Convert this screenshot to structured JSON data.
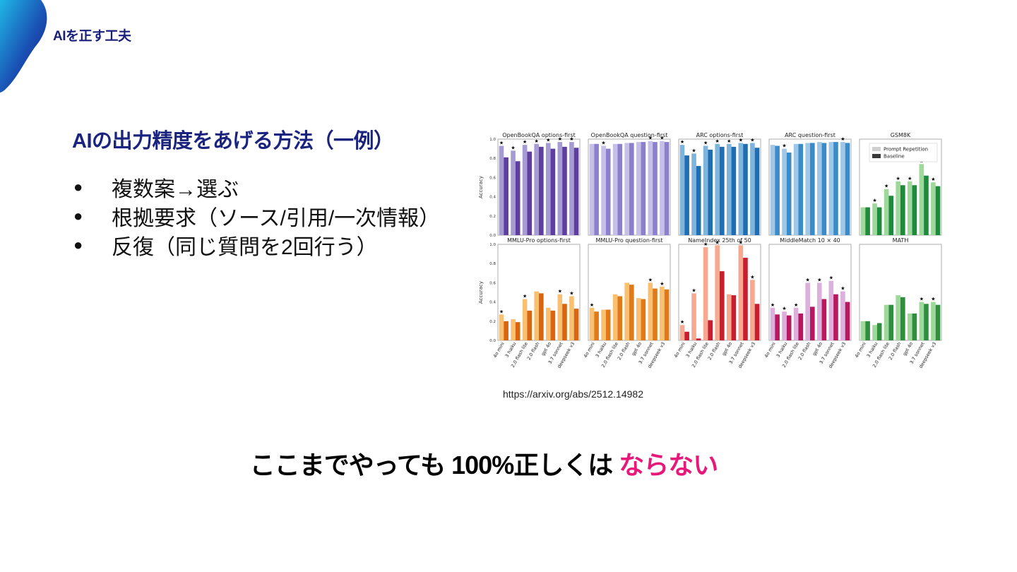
{
  "header": {
    "title": "AIを正す工夫"
  },
  "main": {
    "subtitle": "AIの出力精度をあげる方法（一例）",
    "bullets": [
      "複数案→選ぶ",
      "根拠要求（ソース/引用/一次情報）",
      "反復（同じ質問を2回行う）"
    ],
    "source_url": "https://arxiv.org/abs/2512.14982",
    "conclusion_prefix": "ここまでやっても 100%正しくは",
    "conclusion_emphasis": "ならない"
  },
  "colors": {
    "title": "#1a237e",
    "accent": "#e6197a"
  },
  "chart_data": {
    "type": "bar",
    "ylabel": "Accuracy",
    "ylim": [
      0,
      1
    ],
    "yticks": [
      "0.0",
      "0.2",
      "0.4",
      "0.6",
      "0.8",
      "1.0"
    ],
    "categories": [
      "4o mini",
      "3 haiku",
      "2.0 flash lite",
      "2.0 flash",
      "gpt 4o",
      "3.7 sonnet",
      "deepseek v3"
    ],
    "legend": [
      "Prompt Repetition",
      "Baseline"
    ],
    "panels": [
      {
        "title": "OpenBookQA options-first",
        "colors": [
          "#a79bd4",
          "#5e3fa0"
        ],
        "repetition": [
          0.93,
          0.88,
          0.94,
          0.95,
          0.96,
          0.97,
          0.97
        ],
        "baseline": [
          0.81,
          0.77,
          0.87,
          0.92,
          0.9,
          0.92,
          0.91
        ],
        "stars": [
          1,
          1,
          1,
          1,
          1,
          1,
          1
        ]
      },
      {
        "title": "OpenBookQA question-first",
        "colors": [
          "#c6c0e8",
          "#8c80cc"
        ],
        "repetition": [
          0.95,
          0.93,
          0.95,
          0.96,
          0.97,
          0.98,
          0.98
        ],
        "baseline": [
          0.95,
          0.9,
          0.95,
          0.96,
          0.97,
          0.97,
          0.97
        ],
        "stars": [
          0,
          1,
          0,
          0,
          0,
          1,
          1
        ]
      },
      {
        "title": "ARC options-first",
        "colors": [
          "#7fb4dc",
          "#1f6eb2"
        ],
        "repetition": [
          0.94,
          0.85,
          0.93,
          0.95,
          0.95,
          0.96,
          0.96
        ],
        "baseline": [
          0.83,
          0.72,
          0.89,
          0.92,
          0.92,
          0.95,
          0.91
        ],
        "stars": [
          1,
          1,
          1,
          1,
          1,
          1,
          1
        ]
      },
      {
        "title": "ARC question-first",
        "colors": [
          "#9fc8e8",
          "#3a8bc8"
        ],
        "repetition": [
          0.94,
          0.9,
          0.95,
          0.96,
          0.97,
          0.97,
          0.97
        ],
        "baseline": [
          0.93,
          0.86,
          0.95,
          0.96,
          0.96,
          0.97,
          0.96
        ],
        "stars": [
          0,
          1,
          0,
          0,
          0,
          0,
          1
        ]
      },
      {
        "title": "GSM8K",
        "colors": [
          "#9ed89a",
          "#1f8a3c"
        ],
        "repetition": [
          0.29,
          0.33,
          0.48,
          0.56,
          0.56,
          0.74,
          0.55
        ],
        "baseline": [
          0.29,
          0.29,
          0.41,
          0.52,
          0.52,
          0.62,
          0.51
        ],
        "stars": [
          0,
          1,
          1,
          1,
          1,
          1,
          1
        ],
        "show_legend": true
      },
      {
        "title": "MMLU-Pro options-first",
        "colors": [
          "#f8c070",
          "#d8650f"
        ],
        "repetition": [
          0.27,
          0.22,
          0.43,
          0.51,
          0.34,
          0.48,
          0.46
        ],
        "baseline": [
          0.2,
          0.19,
          0.31,
          0.49,
          0.31,
          0.38,
          0.33
        ],
        "stars": [
          1,
          0,
          1,
          0,
          0,
          1,
          1
        ]
      },
      {
        "title": "MMLU-Pro question-first",
        "colors": [
          "#f8c070",
          "#e07a18"
        ],
        "repetition": [
          0.34,
          0.32,
          0.48,
          0.6,
          0.44,
          0.6,
          0.56
        ],
        "baseline": [
          0.3,
          0.32,
          0.46,
          0.58,
          0.43,
          0.54,
          0.53
        ],
        "stars": [
          1,
          0,
          0,
          0,
          0,
          1,
          1
        ]
      },
      {
        "title": "NameIndex 25th of 50",
        "colors": [
          "#f6a890",
          "#c81e2e"
        ],
        "repetition": [
          0.16,
          0.49,
          0.97,
          0.99,
          0.48,
          0.99,
          0.63
        ],
        "baseline": [
          0.09,
          0.02,
          0.21,
          0.72,
          0.47,
          0.86,
          0.38
        ],
        "stars": [
          1,
          1,
          1,
          1,
          0,
          1,
          1
        ]
      },
      {
        "title": "MiddleMatch 10 × 40",
        "colors": [
          "#dcb0dc",
          "#b8185e"
        ],
        "repetition": [
          0.34,
          0.3,
          0.34,
          0.6,
          0.6,
          0.62,
          0.51
        ],
        "baseline": [
          0.27,
          0.26,
          0.28,
          0.35,
          0.43,
          0.48,
          0.4
        ],
        "stars": [
          1,
          1,
          1,
          1,
          1,
          1,
          1
        ]
      },
      {
        "title": "MATH",
        "colors": [
          "#9ed89a",
          "#2f8f3f"
        ],
        "repetition": [
          0.2,
          0.16,
          0.37,
          0.47,
          0.28,
          0.4,
          0.4
        ],
        "baseline": [
          0.2,
          0.18,
          0.37,
          0.45,
          0.28,
          0.38,
          0.37
        ],
        "stars": [
          0,
          0,
          0,
          0,
          0,
          1,
          1
        ]
      }
    ]
  }
}
